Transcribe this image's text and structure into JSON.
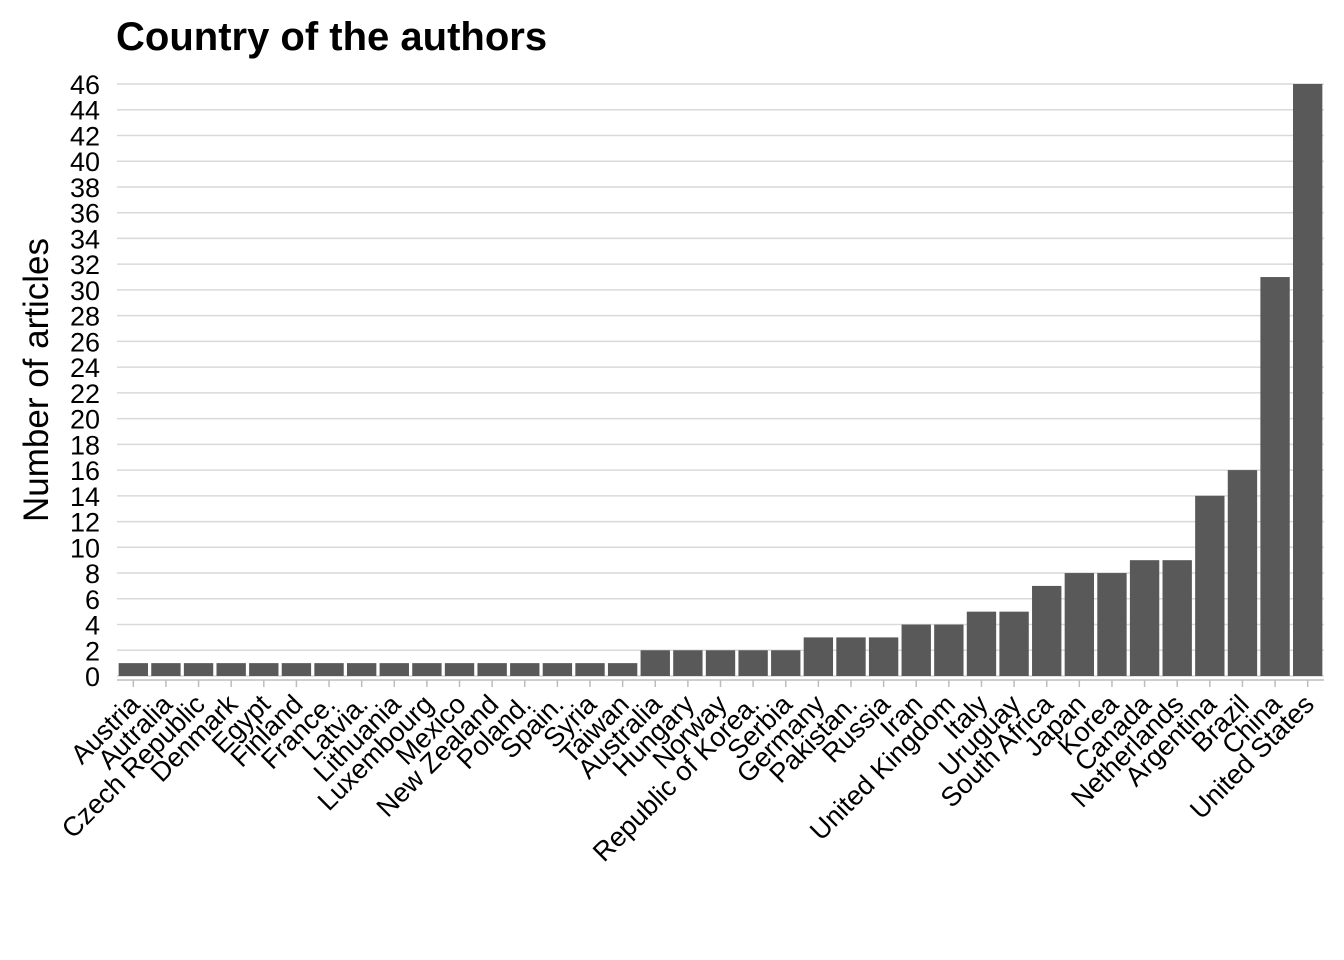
{
  "chart_data": {
    "type": "bar",
    "title": "Country of the authors",
    "xlabel": "",
    "ylabel": "Number of articles",
    "ylim": [
      0,
      46
    ],
    "ytick_step": 2,
    "grid": true,
    "bar_color": "#595959",
    "categories": [
      "Austria",
      "Autralia",
      "Czech Republic",
      "Denmark",
      "Egypt",
      "Finland",
      "France.",
      "Latvia.",
      "Lithuania",
      "Luxembourg",
      "Mexico",
      "New Zealand",
      "Poland.",
      "Spain.",
      "Syria",
      "Taiwan",
      "Australia",
      "Hungary",
      "Norway",
      "Republic of Korea.",
      "Serbia",
      "Germany",
      "Pakistan.",
      "Russia",
      "Iran",
      "United Kingdom",
      "Italy",
      "Uruguay",
      "South Africa",
      "Japan",
      "Korea",
      "Canada",
      "Netherlands",
      "Argentina",
      "Brazil",
      "China",
      "United States"
    ],
    "values": [
      1,
      1,
      1,
      1,
      1,
      1,
      1,
      1,
      1,
      1,
      1,
      1,
      1,
      1,
      1,
      1,
      2,
      2,
      2,
      2,
      2,
      3,
      3,
      3,
      4,
      4,
      5,
      5,
      7,
      8,
      8,
      9,
      9,
      14,
      16,
      31,
      46
    ]
  }
}
